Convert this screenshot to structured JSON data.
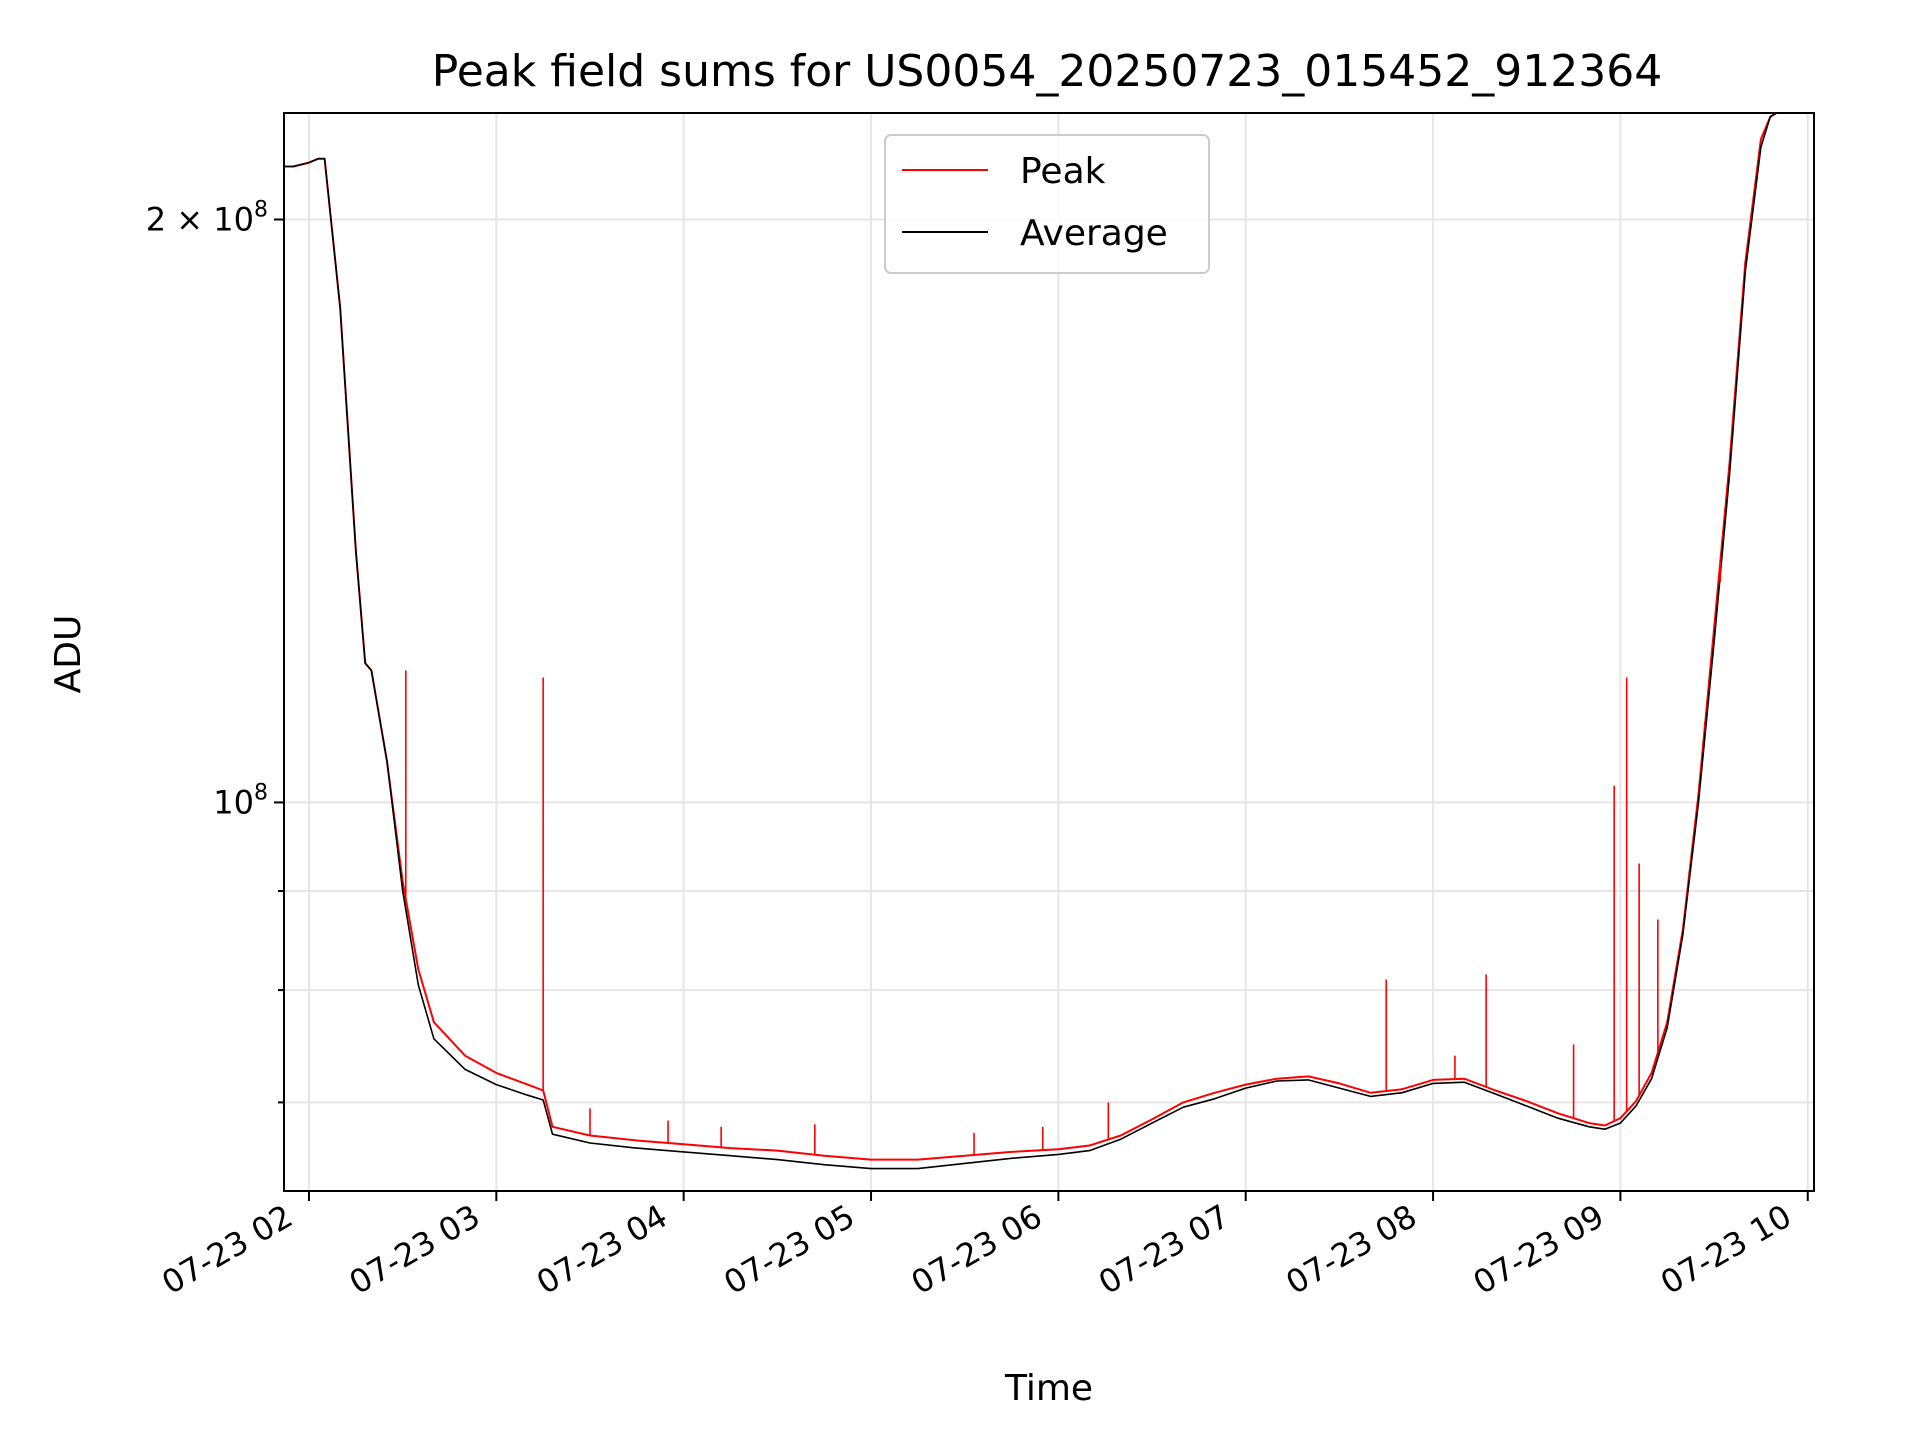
{
  "chart_data": {
    "type": "line",
    "title": "Peak field sums for US0054_20250723_015452_912364",
    "xlabel": "Time",
    "ylabel": "ADU",
    "x_unit": "time on 2025-07-23 (hour axis)",
    "xlim": [
      "01:52",
      "10:02"
    ],
    "ylim": [
      63000000,
      227000000
    ],
    "yscale": "log",
    "grid": true,
    "legend_position": "top-center",
    "x_ticks": [
      {
        "value": "02:00",
        "label": "07-23 02"
      },
      {
        "value": "03:00",
        "label": "07-23 03"
      },
      {
        "value": "04:00",
        "label": "07-23 04"
      },
      {
        "value": "05:00",
        "label": "07-23 05"
      },
      {
        "value": "06:00",
        "label": "07-23 06"
      },
      {
        "value": "07:00",
        "label": "07-23 07"
      },
      {
        "value": "08:00",
        "label": "07-23 08"
      },
      {
        "value": "09:00",
        "label": "07-23 09"
      },
      {
        "value": "10:00",
        "label": "07-23 10"
      }
    ],
    "y_major_ticks": [
      {
        "value": 100000000,
        "base": "10",
        "exp": "8",
        "mantissa": ""
      },
      {
        "value": 200000000,
        "base": "10",
        "exp": "8",
        "mantissa": "2 × "
      }
    ],
    "y_minor_gridlines": [
      70000000,
      80000000,
      90000000
    ],
    "series": [
      {
        "name": "Peak",
        "color": "#ff0000",
        "x": [
          "01:52",
          "01:55",
          "02:00",
          "02:03",
          "02:05",
          "02:10",
          "02:15",
          "02:18",
          "02:20",
          "02:25",
          "02:30",
          "02:35",
          "02:40",
          "02:50",
          "03:00",
          "03:10",
          "03:15",
          "03:18",
          "03:30",
          "03:45",
          "04:00",
          "04:15",
          "04:30",
          "04:45",
          "05:00",
          "05:15",
          "05:30",
          "05:45",
          "06:00",
          "06:10",
          "06:20",
          "06:30",
          "06:40",
          "06:50",
          "07:00",
          "07:10",
          "07:20",
          "07:30",
          "07:40",
          "07:50",
          "08:00",
          "08:10",
          "08:20",
          "08:30",
          "08:40",
          "08:50",
          "08:55",
          "09:00",
          "09:05",
          "09:10",
          "09:15",
          "09:20",
          "09:25",
          "09:30",
          "09:35",
          "09:40",
          "09:45",
          "09:48",
          "09:50",
          "09:55"
        ],
        "y": [
          213000000,
          213000000,
          214000000,
          215000000,
          215000000,
          180000000,
          135000000,
          118000000,
          117000000,
          105000000,
          91000000,
          82000000,
          77000000,
          74000000,
          72500000,
          71500000,
          71000000,
          68000000,
          67300000,
          66900000,
          66600000,
          66300000,
          66100000,
          65700000,
          65400000,
          65400000,
          65700000,
          66000000,
          66200000,
          66500000,
          67300000,
          68600000,
          70000000,
          70800000,
          71500000,
          72000000,
          72200000,
          71600000,
          70800000,
          71100000,
          71900000,
          72000000,
          71000000,
          70100000,
          69100000,
          68300000,
          68100000,
          68700000,
          70100000,
          72500000,
          77000000,
          86000000,
          101000000,
          123000000,
          150000000,
          190000000,
          220000000,
          226000000,
          227000000,
          227000000
        ]
      },
      {
        "name": "Average",
        "color": "#000000",
        "x": [
          "01:52",
          "01:55",
          "02:00",
          "02:03",
          "02:05",
          "02:10",
          "02:15",
          "02:18",
          "02:20",
          "02:25",
          "02:30",
          "02:35",
          "02:40",
          "02:50",
          "03:00",
          "03:10",
          "03:15",
          "03:18",
          "03:30",
          "03:45",
          "04:00",
          "04:15",
          "04:30",
          "04:45",
          "05:00",
          "05:15",
          "05:30",
          "05:45",
          "06:00",
          "06:10",
          "06:20",
          "06:30",
          "06:40",
          "06:50",
          "07:00",
          "07:10",
          "07:20",
          "07:30",
          "07:40",
          "07:50",
          "08:00",
          "08:10",
          "08:20",
          "08:30",
          "08:40",
          "08:50",
          "08:55",
          "09:00",
          "09:05",
          "09:10",
          "09:15",
          "09:20",
          "09:25",
          "09:30",
          "09:35",
          "09:40",
          "09:45",
          "09:48",
          "09:50",
          "09:55"
        ],
        "y": [
          213000000,
          213000000,
          214000000,
          215000000,
          215000000,
          180000000,
          135000000,
          118000000,
          117000000,
          105000000,
          90000000,
          80500000,
          75500000,
          72800000,
          71500000,
          70600000,
          70200000,
          67400000,
          66700000,
          66300000,
          66000000,
          65700000,
          65400000,
          65000000,
          64700000,
          64700000,
          65100000,
          65500000,
          65800000,
          66100000,
          67000000,
          68300000,
          69600000,
          70300000,
          71200000,
          71800000,
          71900000,
          71200000,
          70500000,
          70800000,
          71600000,
          71700000,
          70700000,
          69700000,
          68700000,
          68000000,
          67800000,
          68300000,
          69700000,
          72000000,
          76500000,
          85500000,
          100000000,
          121000000,
          148000000,
          188000000,
          218000000,
          226000000,
          227000000,
          227000000
        ]
      }
    ],
    "peak_spikes": [
      {
        "x": "02:31",
        "y": 117000000
      },
      {
        "x": "03:15",
        "y": 116000000
      },
      {
        "x": "03:30",
        "y": 69500000
      },
      {
        "x": "03:55",
        "y": 68500000
      },
      {
        "x": "04:12",
        "y": 68000000
      },
      {
        "x": "04:42",
        "y": 68200000
      },
      {
        "x": "05:33",
        "y": 67500000
      },
      {
        "x": "05:55",
        "y": 68000000
      },
      {
        "x": "06:16",
        "y": 70000000
      },
      {
        "x": "07:45",
        "y": 81000000
      },
      {
        "x": "08:07",
        "y": 74000000
      },
      {
        "x": "08:17",
        "y": 81500000
      },
      {
        "x": "08:45",
        "y": 75000000
      },
      {
        "x": "08:58",
        "y": 102000000
      },
      {
        "x": "09:02",
        "y": 116000000
      },
      {
        "x": "09:06",
        "y": 93000000
      },
      {
        "x": "09:12",
        "y": 87000000
      },
      {
        "x": "09:22",
        "y": 92000000
      },
      {
        "x": "09:27",
        "y": 110000000
      },
      {
        "x": "09:32",
        "y": 130000000
      }
    ]
  }
}
